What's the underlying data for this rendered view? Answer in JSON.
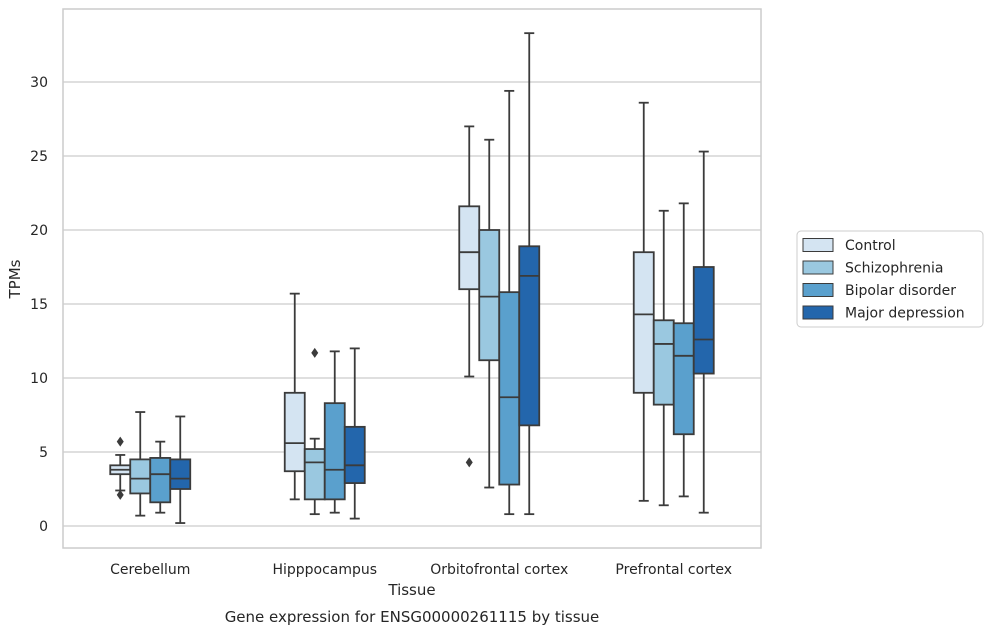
{
  "chart_data": {
    "type": "boxplot",
    "title": "",
    "caption": "Gene expression for ENSG00000261115 by tissue",
    "xlabel": "Tissue",
    "ylabel": "TPMs",
    "ylim": [
      -1.5,
      34
    ],
    "yticks": [
      0,
      5,
      10,
      15,
      20,
      25,
      30
    ],
    "grid": "horizontal",
    "legend_position": "right-center",
    "categories": [
      "Cerebellum",
      "Hipppocampus",
      "Orbitofrontal cortex",
      "Prefrontal cortex"
    ],
    "series": [
      {
        "name": "Control",
        "color": "#d4e4f2",
        "boxes": [
          {
            "whislo": 2.4,
            "q1": 3.5,
            "med": 3.8,
            "q3": 4.1,
            "whishi": 4.8,
            "fliers": [
              5.7,
              2.1
            ]
          },
          {
            "whislo": 1.8,
            "q1": 3.7,
            "med": 5.6,
            "q3": 9.0,
            "whishi": 15.7,
            "fliers": []
          },
          {
            "whislo": 10.1,
            "q1": 16.0,
            "med": 18.5,
            "q3": 21.6,
            "whishi": 27.0,
            "fliers": [
              4.3
            ]
          },
          {
            "whislo": 1.7,
            "q1": 9.0,
            "med": 14.3,
            "q3": 18.5,
            "whishi": 28.6,
            "fliers": []
          }
        ]
      },
      {
        "name": "Schizophrenia",
        "color": "#9ac8e0",
        "boxes": [
          {
            "whislo": 0.7,
            "q1": 2.2,
            "med": 3.2,
            "q3": 4.5,
            "whishi": 7.7,
            "fliers": []
          },
          {
            "whislo": 0.8,
            "q1": 1.8,
            "med": 4.3,
            "q3": 5.2,
            "whishi": 5.9,
            "fliers": [
              11.7
            ]
          },
          {
            "whislo": 2.6,
            "q1": 11.2,
            "med": 15.5,
            "q3": 20.0,
            "whishi": 26.1,
            "fliers": []
          },
          {
            "whislo": 1.4,
            "q1": 8.2,
            "med": 12.3,
            "q3": 13.9,
            "whishi": 21.3,
            "fliers": []
          }
        ]
      },
      {
        "name": "Bipolar disorder",
        "color": "#5aa0cd",
        "boxes": [
          {
            "whislo": 0.9,
            "q1": 1.6,
            "med": 3.5,
            "q3": 4.6,
            "whishi": 5.7,
            "fliers": []
          },
          {
            "whislo": 0.9,
            "q1": 1.8,
            "med": 3.8,
            "q3": 8.3,
            "whishi": 11.8,
            "fliers": []
          },
          {
            "whislo": 0.8,
            "q1": 2.8,
            "med": 8.7,
            "q3": 15.8,
            "whishi": 29.4,
            "fliers": []
          },
          {
            "whislo": 2.0,
            "q1": 6.2,
            "med": 11.5,
            "q3": 13.7,
            "whishi": 21.8,
            "fliers": []
          }
        ]
      },
      {
        "name": "Major depression",
        "color": "#2366ac",
        "boxes": [
          {
            "whislo": 0.2,
            "q1": 2.5,
            "med": 3.2,
            "q3": 4.5,
            "whishi": 7.4,
            "fliers": []
          },
          {
            "whislo": 0.5,
            "q1": 2.9,
            "med": 4.1,
            "q3": 6.7,
            "whishi": 12.0,
            "fliers": []
          },
          {
            "whislo": 0.8,
            "q1": 6.8,
            "med": 16.9,
            "q3": 18.9,
            "whishi": 33.3,
            "fliers": []
          },
          {
            "whislo": 0.9,
            "q1": 10.3,
            "med": 12.6,
            "q3": 17.5,
            "whishi": 25.3,
            "fliers": []
          }
        ]
      }
    ]
  }
}
